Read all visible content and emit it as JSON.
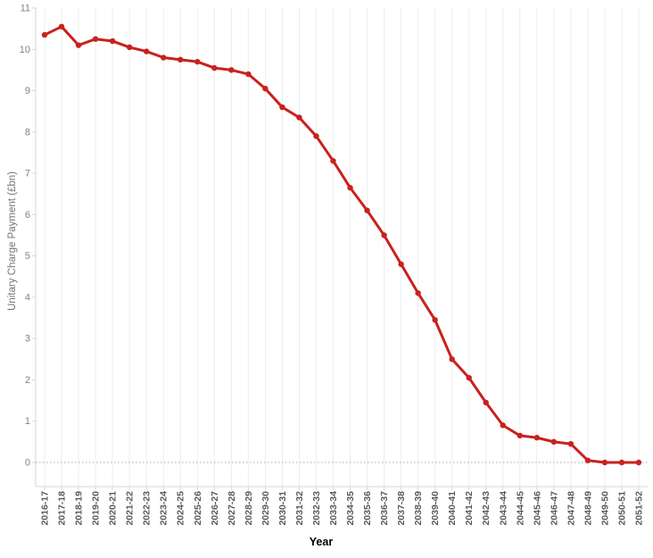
{
  "chart_data": {
    "type": "line",
    "title": "",
    "xlabel": "Year",
    "ylabel": "Unitary Charge Payment (£bn)",
    "ylim": [
      0,
      11
    ],
    "y_ticks": [
      0,
      1,
      2,
      3,
      4,
      5,
      6,
      7,
      8,
      9,
      10,
      11
    ],
    "grid": "faint vertical gridlines per category; dotted horizontal reference line at y=0",
    "legend_position": "none",
    "marker": "filled circle on every point",
    "categories": [
      "2016-17",
      "2017-18",
      "2018-19",
      "2019-20",
      "2020-21",
      "2021-22",
      "2022-23",
      "2023-24",
      "2024-25",
      "2025-26",
      "2026-27",
      "2027-28",
      "2028-29",
      "2029-30",
      "2030-31",
      "2031-32",
      "2032-33",
      "2033-34",
      "2034-35",
      "2035-36",
      "2036-37",
      "2037-38",
      "2038-39",
      "2039-40",
      "2040-41",
      "2041-42",
      "2042-43",
      "2043-44",
      "2044-45",
      "2045-46",
      "2046-47",
      "2047-48",
      "2048-49",
      "2049-50",
      "2050-51",
      "2051-52"
    ],
    "series": [
      {
        "name": "Unitary Charge Payment",
        "color": "#c9211e",
        "values": [
          10.35,
          10.55,
          10.1,
          10.25,
          10.2,
          10.05,
          9.95,
          9.8,
          9.75,
          9.7,
          9.55,
          9.5,
          9.4,
          9.05,
          8.6,
          8.35,
          7.9,
          7.3,
          6.65,
          6.1,
          5.5,
          4.8,
          4.1,
          3.45,
          2.5,
          2.05,
          1.45,
          0.9,
          0.65,
          0.6,
          0.5,
          0.45,
          0.05,
          0,
          0,
          0
        ]
      }
    ],
    "style": {
      "line_color": "#c9211e",
      "line_width": 3,
      "marker_radius": 3.2,
      "gridline_color": "#ededed",
      "axis_color": "#d4d4d4",
      "zero_line_color": "#a6a6a6",
      "y_tick_label_color": "#828282",
      "x_tick_label_color": "#595959",
      "background": "#ffffff"
    }
  }
}
